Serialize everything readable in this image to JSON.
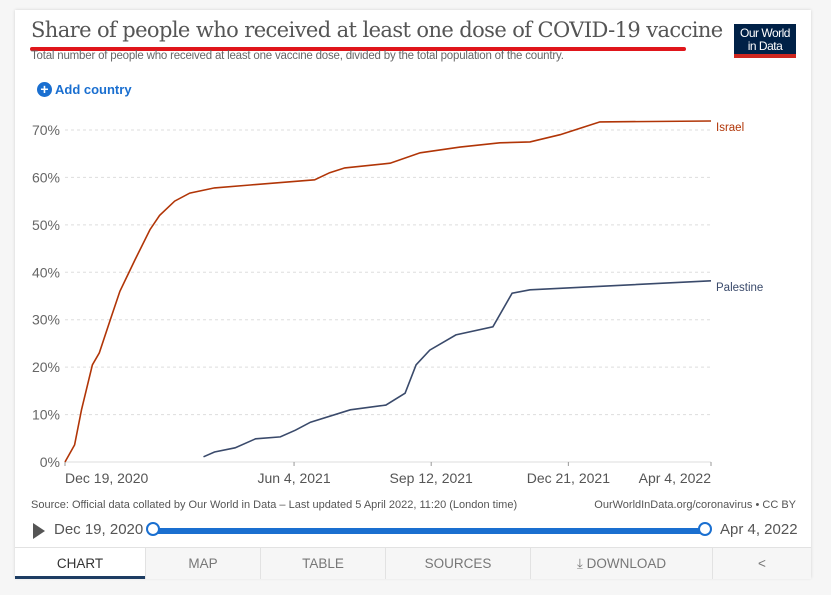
{
  "header": {
    "title": "Share of people who received at least one dose of COVID-19 vaccine",
    "subtitle": "Total number of people who received at least one vaccine dose, divided by the total population of the country.",
    "logo_line1": "Our World",
    "logo_line2": "in Data",
    "add_country": "Add country"
  },
  "footer": {
    "source": "Source: Official data collated by Our World in Data – Last updated 5 April 2022, 11:20 (London time)",
    "license": "OurWorldInData.org/coronavirus • CC BY"
  },
  "timeline": {
    "start": "Dec 19, 2020",
    "end": "Apr 4, 2022",
    "play_icon": "play-icon"
  },
  "tabs": [
    {
      "label": "CHART",
      "active": true
    },
    {
      "label": "MAP"
    },
    {
      "label": "TABLE"
    },
    {
      "label": "SOURCES"
    },
    {
      "label": "DOWNLOAD",
      "icon": "download-icon"
    },
    {
      "label": "",
      "icon": "share-icon"
    }
  ],
  "colors": {
    "accent": "#1a6fd0",
    "title_underline": "#e0161b"
  },
  "chart_data": {
    "type": "line",
    "xlim": [
      "2020-12-19",
      "2022-04-04"
    ],
    "ylim": [
      0,
      70
    ],
    "y_ticks": [
      {
        "v": 0,
        "label": "0%"
      },
      {
        "v": 10,
        "label": "10%"
      },
      {
        "v": 20,
        "label": "20%"
      },
      {
        "v": 30,
        "label": "30%"
      },
      {
        "v": 40,
        "label": "40%"
      },
      {
        "v": 50,
        "label": "50%"
      },
      {
        "v": 60,
        "label": "60%"
      },
      {
        "v": 70,
        "label": "70%"
      }
    ],
    "x_ticks": [
      {
        "v": "2020-12-19",
        "label": "Dec 19, 2020"
      },
      {
        "v": "2021-06-04",
        "label": "Jun 4, 2021"
      },
      {
        "v": "2021-09-12",
        "label": "Sep 12, 2021"
      },
      {
        "v": "2021-12-21",
        "label": "Dec 21, 2021"
      },
      {
        "v": "2022-04-04",
        "label": "Apr 4, 2022"
      }
    ],
    "grid": "horizontal dashed",
    "series": [
      {
        "name": "Israel",
        "color": "#b13507",
        "points": [
          [
            "2020-12-19",
            0
          ],
          [
            "2020-12-26",
            3.6
          ],
          [
            "2020-12-31",
            11
          ],
          [
            "2021-01-08",
            20.5
          ],
          [
            "2021-01-13",
            23
          ],
          [
            "2021-01-21",
            30
          ],
          [
            "2021-01-28",
            36
          ],
          [
            "2021-02-08",
            42.6
          ],
          [
            "2021-02-19",
            49
          ],
          [
            "2021-02-26",
            52
          ],
          [
            "2021-03-09",
            55
          ],
          [
            "2021-03-20",
            56.7
          ],
          [
            "2021-04-07",
            57.8
          ],
          [
            "2021-05-03",
            58.4
          ],
          [
            "2021-06-19",
            59.5
          ],
          [
            "2021-06-30",
            61
          ],
          [
            "2021-07-11",
            62
          ],
          [
            "2021-08-13",
            63
          ],
          [
            "2021-09-04",
            65.2
          ],
          [
            "2021-10-03",
            66.4
          ],
          [
            "2021-11-01",
            67.3
          ],
          [
            "2021-11-23",
            67.5
          ],
          [
            "2021-12-15",
            69
          ],
          [
            "2022-01-13",
            71.7
          ],
          [
            "2022-04-04",
            71.9
          ]
        ]
      },
      {
        "name": "Palestine",
        "color": "#3a4a6b",
        "points": [
          [
            "2021-03-30",
            1.1
          ],
          [
            "2021-04-07",
            2.1
          ],
          [
            "2021-04-22",
            3
          ],
          [
            "2021-05-07",
            4.9
          ],
          [
            "2021-05-25",
            5.3
          ],
          [
            "2021-06-05",
            6.7
          ],
          [
            "2021-06-16",
            8.4
          ],
          [
            "2021-07-15",
            11
          ],
          [
            "2021-08-10",
            12
          ],
          [
            "2021-08-24",
            14.5
          ],
          [
            "2021-09-01",
            20.5
          ],
          [
            "2021-09-11",
            23.6
          ],
          [
            "2021-09-30",
            26.8
          ],
          [
            "2021-10-27",
            28.5
          ],
          [
            "2021-11-10",
            35.6
          ],
          [
            "2021-11-23",
            36.3
          ],
          [
            "2022-04-04",
            38.2
          ]
        ]
      }
    ]
  }
}
